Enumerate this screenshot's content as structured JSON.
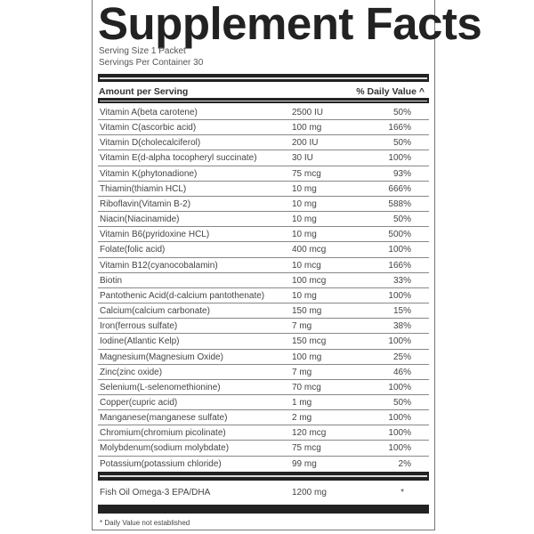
{
  "title": "Supplement Facts",
  "serving_size": "Serving Size 1 Packet",
  "servings_per_container": "Servings Per Container 30",
  "header": {
    "amount": "Amount per Serving",
    "daily_value": "% Daily Value ^"
  },
  "rows": [
    {
      "name": "Vitamin A(beta carotene)",
      "amount": "2500 IU",
      "dv": "50%"
    },
    {
      "name": "Vitamin C(ascorbic acid)",
      "amount": "100 mg",
      "dv": "166%"
    },
    {
      "name": "Vitamin D(cholecalciferol)",
      "amount": "200 IU",
      "dv": "50%"
    },
    {
      "name": "Vitamin E(d-alpha tocopheryl succinate)",
      "amount": "30 IU",
      "dv": "100%"
    },
    {
      "name": "Vitamin K(phytonadione)",
      "amount": "75 mcg",
      "dv": "93%"
    },
    {
      "name": "Thiamin(thiamin HCL)",
      "amount": "10 mg",
      "dv": "666%"
    },
    {
      "name": "Riboflavin(Vitamin B-2)",
      "amount": "10 mg",
      "dv": "588%"
    },
    {
      "name": "Niacin(Niacinamide)",
      "amount": "10 mg",
      "dv": "50%"
    },
    {
      "name": "Vitamin B6(pyridoxine HCL)",
      "amount": "10 mg",
      "dv": "500%"
    },
    {
      "name": "Folate(folic acid)",
      "amount": "400 mcg",
      "dv": "100%"
    },
    {
      "name": "Vitamin B12(cyanocobalamin)",
      "amount": "10 mcg",
      "dv": "166%"
    },
    {
      "name": "Biotin",
      "amount": "100 mcg",
      "dv": "33%"
    },
    {
      "name": "Pantothenic Acid(d-calcium pantothenate)",
      "amount": "10 mg",
      "dv": "100%"
    },
    {
      "name": "Calcium(calcium carbonate)",
      "amount": "150 mg",
      "dv": "15%"
    },
    {
      "name": "Iron(ferrous sulfate)",
      "amount": "7 mg",
      "dv": "38%"
    },
    {
      "name": "Iodine(Atlantic Kelp)",
      "amount": "150 mcg",
      "dv": "100%"
    },
    {
      "name": "Magnesium(Magnesium Oxide)",
      "amount": "100 mg",
      "dv": "25%"
    },
    {
      "name": "Zinc(zinc oxide)",
      "amount": "7 mg",
      "dv": "46%"
    },
    {
      "name": "Selenium(L-selenomethionine)",
      "amount": "70 mcg",
      "dv": "100%"
    },
    {
      "name": "Copper(cupric acid)",
      "amount": "1 mg",
      "dv": "50%"
    },
    {
      "name": "Manganese(manganese sulfate)",
      "amount": "2 mg",
      "dv": "100%"
    },
    {
      "name": "Chromium(chromium picolinate)",
      "amount": "120 mcg",
      "dv": "100%"
    },
    {
      "name": "Molybdenum(sodium molybdate)",
      "amount": "75 mcg",
      "dv": "100%"
    },
    {
      "name": "Potassium(potassium chloride)",
      "amount": "99 mg",
      "dv": "2%"
    }
  ],
  "other": {
    "name": "Fish Oil Omega-3 EPA/DHA",
    "amount": "1200 mg",
    "dv": "*"
  },
  "footnote": "* Daily Value not established"
}
